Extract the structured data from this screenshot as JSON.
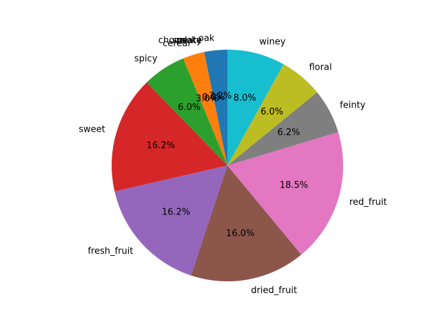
{
  "chart_data": {
    "type": "pie",
    "start_angle_deg": 90,
    "direction": "counterclockwise",
    "slices": [
      {
        "label": "oak",
        "value": 3.2,
        "pct_label": "3.2%",
        "color": "#1f77b4"
      },
      {
        "label": "smoky",
        "value": 0.0,
        "pct_label": "0.0%",
        "color": "#ff7f0e"
      },
      {
        "label": "peaty",
        "value": 0.0,
        "pct_label": "0.0%",
        "color": "#ff7f0e"
      },
      {
        "label": "chocolate",
        "value": 0.0,
        "pct_label": "0.0%",
        "color": "#ff7f0e"
      },
      {
        "label": "cereal",
        "value": 3.0,
        "pct_label": "3.0%",
        "color": "#ff7f0e"
      },
      {
        "label": "spicy",
        "value": 6.0,
        "pct_label": "6.0%",
        "color": "#2ca02c"
      },
      {
        "label": "sweet",
        "value": 16.2,
        "pct_label": "16.2%",
        "color": "#d62728"
      },
      {
        "label": "fresh_fruit",
        "value": 16.2,
        "pct_label": "16.2%",
        "color": "#9467bd"
      },
      {
        "label": "dried_fruit",
        "value": 16.0,
        "pct_label": "16.0%",
        "color": "#8c564b"
      },
      {
        "label": "red_fruit",
        "value": 18.5,
        "pct_label": "18.5%",
        "color": "#e377c2"
      },
      {
        "label": "feinty",
        "value": 6.2,
        "pct_label": "6.2%",
        "color": "#7f7f7f"
      },
      {
        "label": "floral",
        "value": 6.0,
        "pct_label": "6.0%",
        "color": "#bcbd22"
      },
      {
        "label": "winey",
        "value": 8.0,
        "pct_label": "8.0%",
        "color": "#17becf"
      }
    ]
  }
}
